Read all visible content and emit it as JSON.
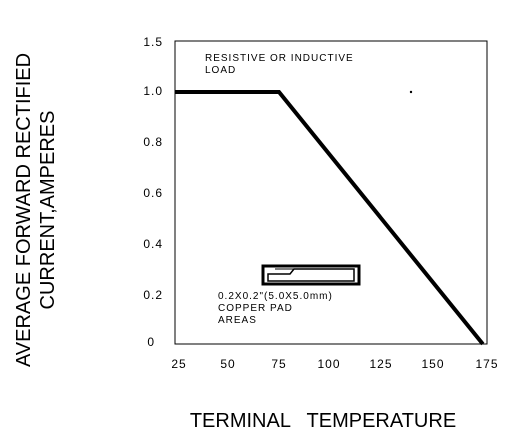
{
  "chart_data": {
    "type": "line",
    "ylabel_lines": [
      "AVERAGE FORWARD RECTIFIED",
      "CURRENT,AMPERES"
    ],
    "xlabel": "TERMINAL   TEMPERATURE",
    "x_ticks": [
      "25",
      "50",
      "75",
      "100",
      "125",
      "150",
      "175"
    ],
    "y_ticks": [
      "0",
      "0.2",
      "0.4",
      "0.6",
      "0.8",
      "1.0",
      "1.5"
    ],
    "xlim": [
      25,
      175
    ],
    "grid": false,
    "annotation_load": [
      "RESISTIVE OR INDUCTIVE",
      "LOAD"
    ],
    "annotation_pad": [
      "0.2X0.2\"(5.0X5.0mm)",
      "COPPER PAD",
      "AREAS"
    ],
    "series": [
      {
        "x": [
          25,
          75,
          173
        ],
        "y": [
          1.0,
          1.0,
          0
        ]
      }
    ]
  }
}
